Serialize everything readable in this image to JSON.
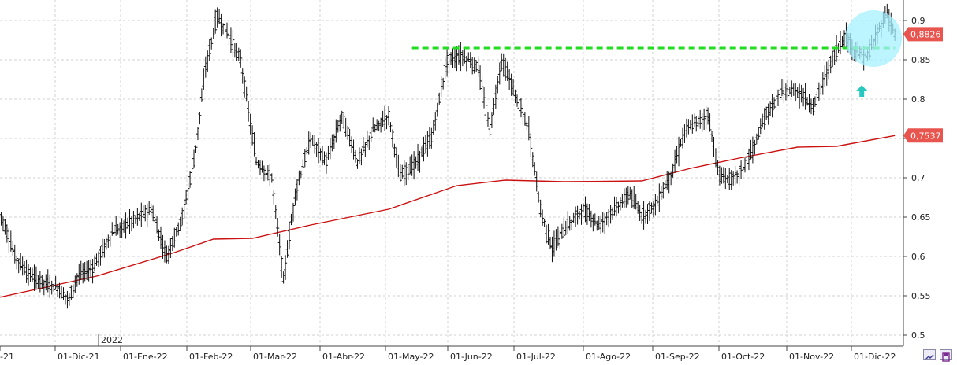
{
  "chart_data": {
    "type": "ohlc",
    "year_marker": "2022",
    "x_ticks": [
      "-21",
      "01-Dic-21",
      "01-Ene-22",
      "01-Feb-22",
      "01-Mar-22",
      "01-Abr-22",
      "01-May-22",
      "01-Jun-22",
      "01-Jul-22",
      "01-Ago-22",
      "01-Sep-22",
      "01-Oct-22",
      "01-Nov-22",
      "01-Dic-22"
    ],
    "y_ticks": [
      "0,9",
      "0,85",
      "0,8",
      "0,75",
      "0,7",
      "0,65",
      "0,6",
      "0,55",
      "0,5"
    ],
    "y_tick_values": [
      0.9,
      0.85,
      0.8,
      0.75,
      0.7,
      0.65,
      0.6,
      0.55,
      0.5
    ],
    "ylim": [
      0.49,
      0.915
    ],
    "grid": true,
    "price_labels": [
      {
        "text": "0,8826",
        "value": 0.8826,
        "color": "#e8554e"
      },
      {
        "text": "0,7537",
        "value": 0.7537,
        "color": "#e8554e"
      }
    ],
    "resistance_value": 0.865,
    "key_points": [
      [
        0,
        0.66
      ],
      [
        8,
        0.6
      ],
      [
        16,
        0.575
      ],
      [
        24,
        0.565
      ],
      [
        30,
        0.56
      ],
      [
        36,
        0.545
      ],
      [
        40,
        0.575
      ],
      [
        48,
        0.585
      ],
      [
        58,
        0.63
      ],
      [
        68,
        0.645
      ],
      [
        78,
        0.66
      ],
      [
        86,
        0.6
      ],
      [
        94,
        0.65
      ],
      [
        100,
        0.72
      ],
      [
        106,
        0.84
      ],
      [
        112,
        0.905
      ],
      [
        118,
        0.88
      ],
      [
        124,
        0.85
      ],
      [
        132,
        0.72
      ],
      [
        140,
        0.7
      ],
      [
        146,
        0.57
      ],
      [
        152,
        0.68
      ],
      [
        160,
        0.75
      ],
      [
        168,
        0.72
      ],
      [
        176,
        0.78
      ],
      [
        184,
        0.72
      ],
      [
        192,
        0.76
      ],
      [
        200,
        0.78
      ],
      [
        206,
        0.7
      ],
      [
        214,
        0.72
      ],
      [
        222,
        0.75
      ],
      [
        230,
        0.85
      ],
      [
        238,
        0.855
      ],
      [
        246,
        0.84
      ],
      [
        252,
        0.76
      ],
      [
        258,
        0.85
      ],
      [
        266,
        0.8
      ],
      [
        272,
        0.76
      ],
      [
        278,
        0.66
      ],
      [
        284,
        0.61
      ],
      [
        292,
        0.64
      ],
      [
        300,
        0.66
      ],
      [
        308,
        0.64
      ],
      [
        316,
        0.66
      ],
      [
        324,
        0.68
      ],
      [
        330,
        0.65
      ],
      [
        338,
        0.67
      ],
      [
        346,
        0.71
      ],
      [
        352,
        0.76
      ],
      [
        358,
        0.77
      ],
      [
        364,
        0.78
      ],
      [
        370,
        0.7
      ],
      [
        378,
        0.7
      ],
      [
        386,
        0.73
      ],
      [
        394,
        0.78
      ],
      [
        402,
        0.81
      ],
      [
        410,
        0.81
      ],
      [
        418,
        0.79
      ],
      [
        426,
        0.84
      ],
      [
        434,
        0.88
      ],
      [
        440,
        0.86
      ],
      [
        446,
        0.855
      ],
      [
        452,
        0.89
      ],
      [
        456,
        0.91
      ],
      [
        460,
        0.8826
      ]
    ],
    "ma_points": [
      [
        0,
        0.548
      ],
      [
        50,
        0.575
      ],
      [
        90,
        0.605
      ],
      [
        110,
        0.622
      ],
      [
        130,
        0.623
      ],
      [
        160,
        0.64
      ],
      [
        200,
        0.66
      ],
      [
        235,
        0.69
      ],
      [
        260,
        0.697
      ],
      [
        290,
        0.695
      ],
      [
        330,
        0.696
      ],
      [
        355,
        0.712
      ],
      [
        380,
        0.725
      ],
      [
        410,
        0.739
      ],
      [
        430,
        0.74
      ],
      [
        460,
        0.7537
      ]
    ]
  }
}
